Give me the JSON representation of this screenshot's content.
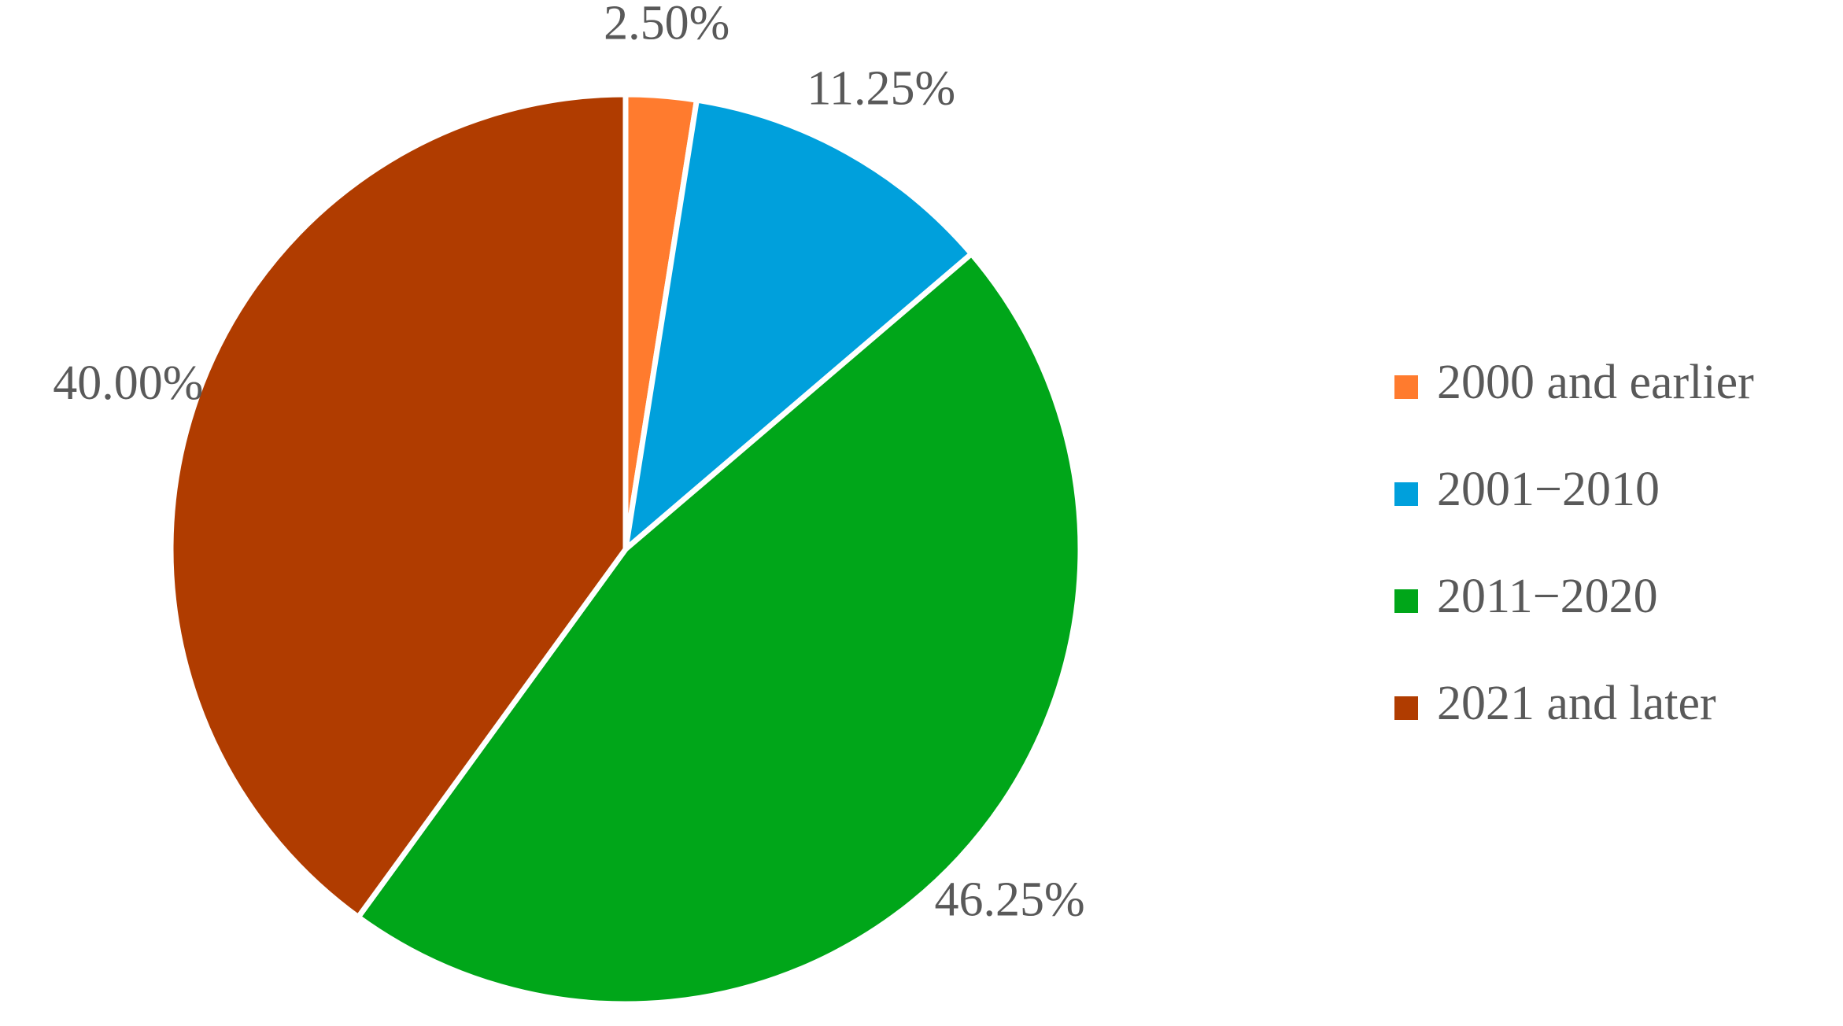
{
  "chart_data": {
    "type": "pie",
    "categories": [
      "2000 and earlier",
      "2001−2010",
      "2011−2020",
      "2021 and later"
    ],
    "values": [
      2.5,
      11.25,
      46.25,
      40
    ],
    "value_labels": [
      "2.50%",
      "11.25%",
      "46.25%",
      "40.00%"
    ],
    "colors": [
      "#ff7b2e",
      "#00a0dc",
      "#00a619",
      "#b03c00"
    ],
    "legend": "right"
  }
}
